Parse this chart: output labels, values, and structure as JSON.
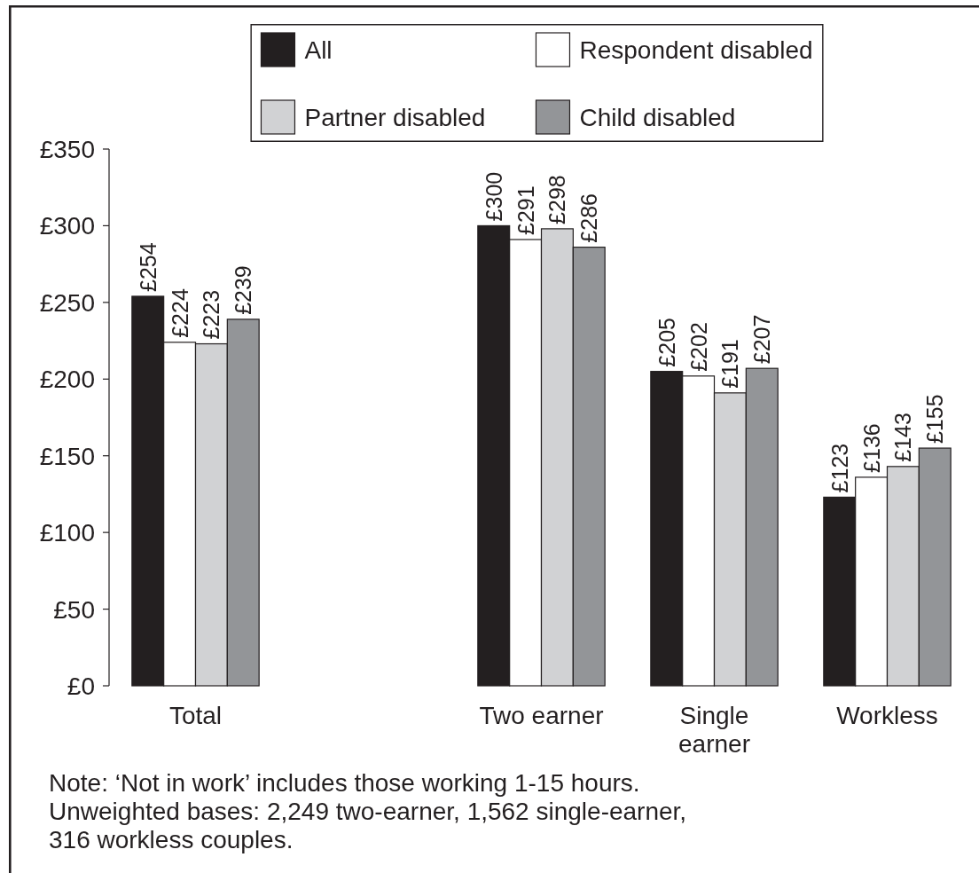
{
  "chart_data": {
    "type": "bar",
    "categories": [
      "Total",
      null,
      "Two earner",
      "Single earner",
      "Workless"
    ],
    "series": [
      {
        "name": "All",
        "color": "#231f20",
        "values": [
          254,
          null,
          300,
          205,
          123
        ],
        "value_labels": [
          "£254",
          null,
          "£300",
          "£205",
          "£123"
        ]
      },
      {
        "name": "Respondent disabled",
        "color": "#ffffff",
        "values": [
          224,
          null,
          291,
          202,
          136
        ],
        "value_labels": [
          "£224",
          null,
          "£291",
          "£202",
          "£136"
        ]
      },
      {
        "name": "Partner disabled",
        "color": "#d1d2d4",
        "values": [
          223,
          null,
          298,
          191,
          143
        ],
        "value_labels": [
          "£223",
          null,
          "£298",
          "£191",
          "£143"
        ]
      },
      {
        "name": "Child disabled",
        "color": "#939598",
        "values": [
          239,
          null,
          286,
          207,
          155
        ],
        "value_labels": [
          "£239",
          null,
          "£286",
          "£207",
          "£155"
        ]
      }
    ],
    "ylim": [
      0,
      350
    ],
    "yticks": [
      {
        "value": 0,
        "label": "£0"
      },
      {
        "value": 50,
        "label": "£50"
      },
      {
        "value": 100,
        "label": "£100"
      },
      {
        "value": 150,
        "label": "£150"
      },
      {
        "value": 200,
        "label": "£200"
      },
      {
        "value": 250,
        "label": "£250"
      },
      {
        "value": 300,
        "label": "£300"
      },
      {
        "value": 350,
        "label": "£350"
      }
    ],
    "legend": "top",
    "annotations": [
      "Note: ‘Not in work’ includes those working 1-15 hours.",
      "Unweighted bases: 2,249 two-earner, 1,562 single-earner, 316 workless couples."
    ]
  }
}
